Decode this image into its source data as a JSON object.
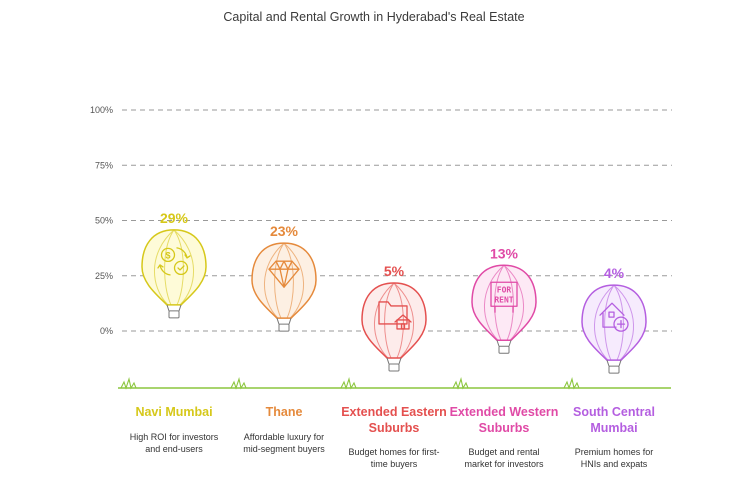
{
  "chart_data": {
    "type": "bar",
    "title": "Capital and Rental Growth in Hyderabad's Real Estate",
    "xlabel": "",
    "ylabel": "",
    "ylim": [
      0,
      100
    ],
    "yticks": [
      "100%",
      "75%",
      "50%",
      "25%",
      "0%"
    ],
    "grid": true,
    "categories": [
      "Navi Mumbai",
      "Thane",
      "Extended Eastern Suburbs",
      "Extended Western Suburbs",
      "South Central Mumbai"
    ],
    "values": [
      29,
      23,
      5,
      13,
      4
    ],
    "value_labels": [
      "29%",
      "23%",
      "5%",
      "13%",
      "4%"
    ],
    "descriptions": [
      "High ROI for investors and end-users",
      "Affordable luxury for mid-segment buyers",
      "Budget homes for first-time buyers",
      "Budget and rental market for investors",
      "Premium homes for HNIs and expats"
    ],
    "icons": [
      "money-exchange-icon",
      "diamond-icon",
      "folder-home-icon",
      "for-rent-sign-icon",
      "house-plus-icon"
    ],
    "colors": [
      "#d6c81a",
      "#e58a3c",
      "#e4504f",
      "#e04aa6",
      "#b45ee0"
    ],
    "fills": [
      "#fefbd8",
      "#fdf0e3",
      "#fdeceb",
      "#fde9f5",
      "#f6ebfd"
    ],
    "ground_color": "#8cc63f",
    "for_rent_text": "FOR RENT"
  }
}
